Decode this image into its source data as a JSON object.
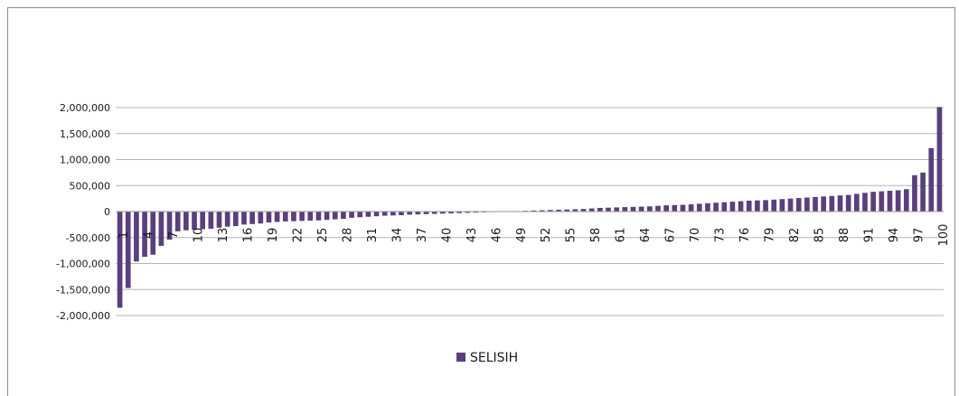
{
  "chart_data": {
    "type": "bar",
    "title": "",
    "xlabel": "",
    "ylabel": "",
    "ylim": [
      -2000000,
      2000000
    ],
    "yticks": [
      2000000,
      1500000,
      1000000,
      500000,
      0,
      -500000,
      -1000000,
      -1500000,
      -2000000
    ],
    "ytick_labels": [
      "2,000,000",
      "1,500,000",
      "1,000,000",
      "500,000",
      "0",
      "-500,000",
      "-1,000,000",
      "-1,500,000",
      "-2,000,000"
    ],
    "xtick_step": 3,
    "grid": true,
    "legend_position": "bottom",
    "bar_color": "#5B3F7D",
    "series": [
      {
        "name": "SELISIH",
        "values": [
          -1850000,
          -1470000,
          -960000,
          -870000,
          -830000,
          -660000,
          -540000,
          -380000,
          -360000,
          -350000,
          -340000,
          -330000,
          -310000,
          -290000,
          -280000,
          -250000,
          -240000,
          -230000,
          -210000,
          -200000,
          -190000,
          -185000,
          -180000,
          -175000,
          -170000,
          -160000,
          -150000,
          -140000,
          -120000,
          -110000,
          -100000,
          -90000,
          -80000,
          -75000,
          -70000,
          -60000,
          -55000,
          -50000,
          -45000,
          -40000,
          -35000,
          -30000,
          -25000,
          -20000,
          -15000,
          -10000,
          -5000,
          5000,
          10000,
          15000,
          20000,
          25000,
          30000,
          35000,
          40000,
          45000,
          50000,
          60000,
          70000,
          75000,
          80000,
          85000,
          90000,
          95000,
          100000,
          110000,
          120000,
          125000,
          130000,
          140000,
          150000,
          160000,
          170000,
          180000,
          190000,
          200000,
          210000,
          215000,
          220000,
          230000,
          240000,
          250000,
          260000,
          270000,
          280000,
          290000,
          300000,
          310000,
          320000,
          340000,
          360000,
          380000,
          390000,
          400000,
          410000,
          430000,
          700000,
          750000,
          1220000,
          2010000
        ]
      }
    ]
  }
}
